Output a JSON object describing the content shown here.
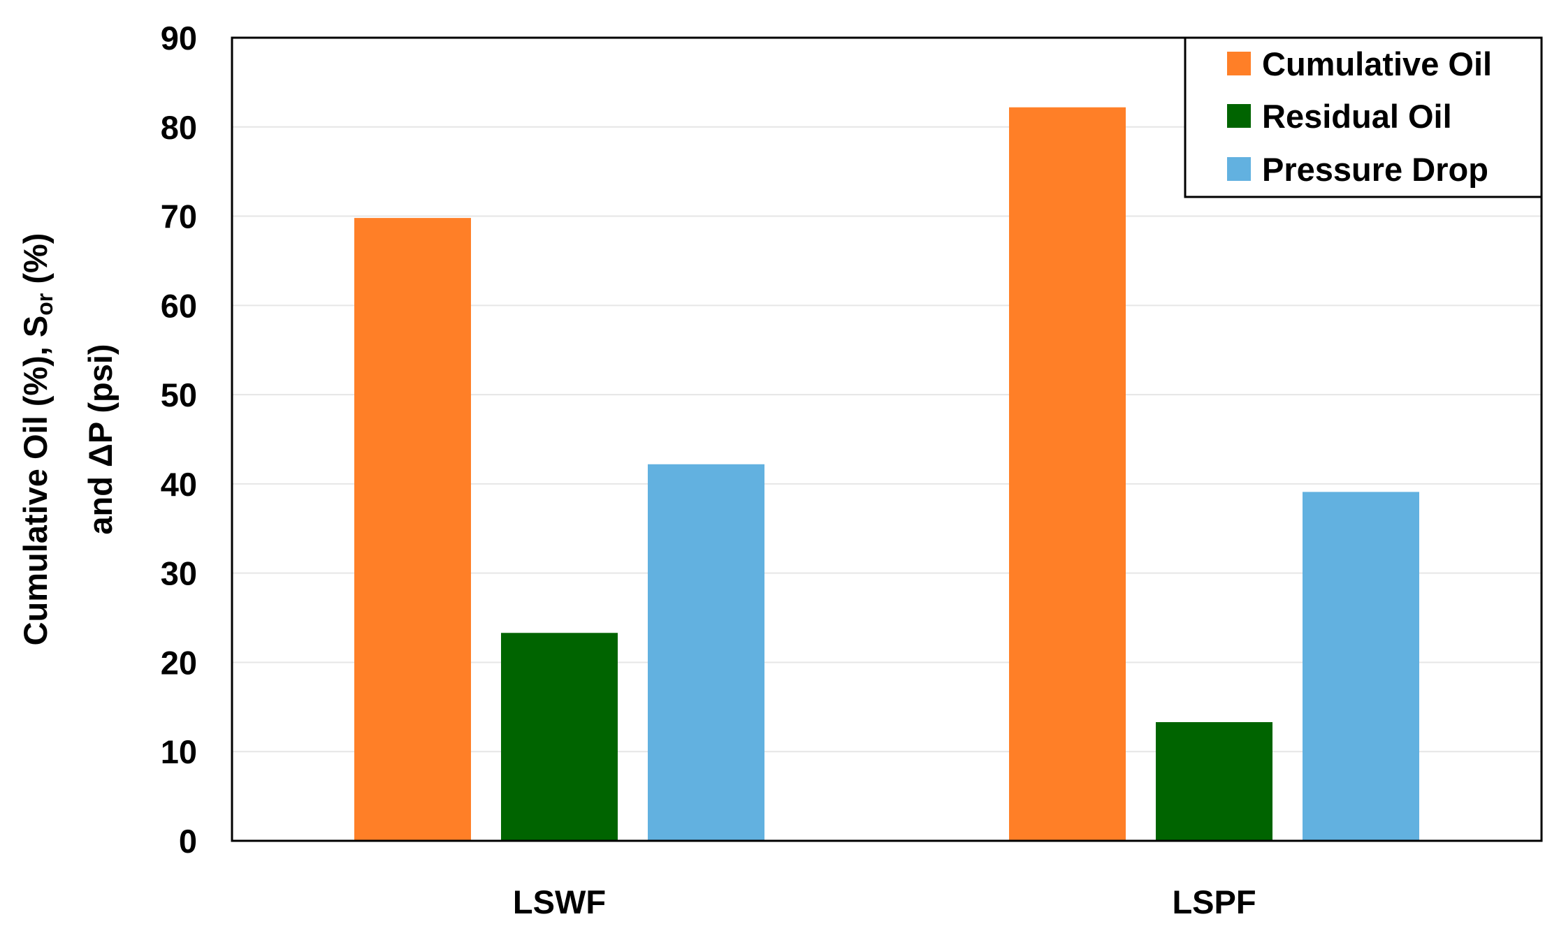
{
  "chart_data": {
    "type": "bar",
    "categories": [
      "LSWF",
      "LSPF"
    ],
    "series": [
      {
        "name": "Cumulative Oil",
        "values": [
          69.8,
          82.2
        ],
        "color": "#FF7F27"
      },
      {
        "name": "Residual Oil",
        "values": [
          23.3,
          13.3
        ],
        "color": "#006400"
      },
      {
        "name": "Pressure Drop",
        "values": [
          42.2,
          39.1
        ],
        "color": "#62B1E0"
      }
    ],
    "ylim": [
      0,
      90
    ],
    "yticks": [
      0,
      10,
      20,
      30,
      40,
      50,
      60,
      70,
      80,
      90
    ],
    "ylabel": {
      "line1_prefix": "Cumulative Oil (%), S",
      "line1_subscript": "or",
      "line1_suffix": " (%)",
      "line2": "and ΔP (psi)"
    },
    "xlabel": "",
    "title": "",
    "grid": true,
    "legend_position": "top-right"
  }
}
